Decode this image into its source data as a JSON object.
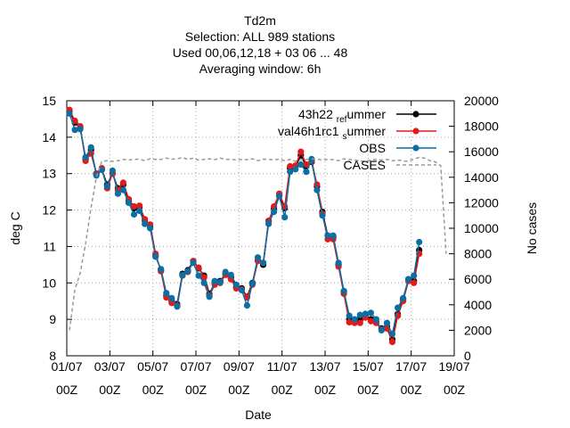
{
  "chart_data": {
    "type": "line",
    "title_lines": [
      "Td2m",
      "Selection: ALL    989 stations",
      "Used  00,06,12,18  + 03 06 ... 48",
      "Averaging window:  6h"
    ],
    "xlabel": "Date",
    "ylabel": "deg C",
    "y2label": "No cases",
    "xlim_days": [
      0,
      18
    ],
    "ylim": [
      8,
      15
    ],
    "y2lim": [
      0,
      20000
    ],
    "x_ticks": [
      {
        "day": 0,
        "line1": "01/07",
        "line2": "00Z"
      },
      {
        "day": 2,
        "line1": "03/07",
        "line2": "00Z"
      },
      {
        "day": 4,
        "line1": "05/07",
        "line2": "00Z"
      },
      {
        "day": 6,
        "line1": "07/07",
        "line2": "00Z"
      },
      {
        "day": 8,
        "line1": "09/07",
        "line2": "00Z"
      },
      {
        "day": 10,
        "line1": "11/07",
        "line2": "00Z"
      },
      {
        "day": 12,
        "line1": "13/07",
        "line2": "00Z"
      },
      {
        "day": 14,
        "line1": "15/07",
        "line2": "00Z"
      },
      {
        "day": 16,
        "line1": "17/07",
        "line2": "00Z"
      },
      {
        "day": 18,
        "line1": "19/07",
        "line2": "00Z"
      }
    ],
    "y_ticks": [
      8,
      9,
      10,
      11,
      12,
      13,
      14,
      15
    ],
    "y2_ticks": [
      0,
      2000,
      4000,
      6000,
      8000,
      10000,
      12000,
      14000,
      16000,
      18000,
      20000
    ],
    "grid": true,
    "legend_position": "top-right",
    "x_days": [
      0.125,
      0.375,
      0.625,
      0.875,
      1.125,
      1.375,
      1.625,
      1.875,
      2.125,
      2.375,
      2.625,
      2.875,
      3.125,
      3.375,
      3.625,
      3.875,
      4.125,
      4.375,
      4.625,
      4.875,
      5.125,
      5.375,
      5.625,
      5.875,
      6.125,
      6.375,
      6.625,
      6.875,
      7.125,
      7.375,
      7.625,
      7.875,
      8.125,
      8.375,
      8.625,
      8.875,
      9.125,
      9.375,
      9.625,
      9.875,
      10.125,
      10.375,
      10.625,
      10.875,
      11.125,
      11.375,
      11.625,
      11.875,
      12.125,
      12.375,
      12.625,
      12.875,
      13.125,
      13.375,
      13.625,
      13.875,
      14.125,
      14.375,
      14.625,
      14.875,
      15.125,
      15.375,
      15.625,
      15.875,
      16.125,
      16.375,
      16.625,
      16.875,
      17.125,
      17.375,
      17.625
    ],
    "series": [
      {
        "name": "43h22 ref summer",
        "legend_main": "43h22",
        "legend_sub1": "ref",
        "legend_sub2": "ummer",
        "color": "#000000",
        "values": [
          14.72,
          14.4,
          14.25,
          13.4,
          13.65,
          13.0,
          13.12,
          12.7,
          13.0,
          12.6,
          12.7,
          12.25,
          12.05,
          12.08,
          11.72,
          11.55,
          10.75,
          10.35,
          9.65,
          9.5,
          9.42,
          10.25,
          10.35,
          10.6,
          10.4,
          10.2,
          9.7,
          10.0,
          10.05,
          10.25,
          10.15,
          9.88,
          9.85,
          9.62,
          10.0,
          10.62,
          10.5,
          11.7,
          12.05,
          12.4,
          12.05,
          13.15,
          13.2,
          13.5,
          13.2,
          13.32,
          12.65,
          11.95,
          11.3,
          11.25,
          10.5,
          9.75,
          9.0,
          8.95,
          8.98,
          9.1,
          9.0,
          8.92,
          8.75,
          8.8,
          8.45,
          9.15,
          9.55,
          10.1,
          10.05,
          10.9
        ]
      },
      {
        "name": "val46h1rc1 summer",
        "legend_main": "val46h1rc1",
        "legend_sub1": "s",
        "legend_sub2": "ummer",
        "color": "#e31a1c",
        "values": [
          14.75,
          14.45,
          14.3,
          13.35,
          13.55,
          13.0,
          13.15,
          12.6,
          13.0,
          12.55,
          12.75,
          12.3,
          12.1,
          12.12,
          11.75,
          11.6,
          10.8,
          10.32,
          9.6,
          9.45,
          9.38,
          10.2,
          10.3,
          10.6,
          10.42,
          10.15,
          9.65,
          9.95,
          10.0,
          10.22,
          10.1,
          9.85,
          9.82,
          9.6,
          9.95,
          10.6,
          10.55,
          11.68,
          12.1,
          12.45,
          12.1,
          13.2,
          13.22,
          13.6,
          13.25,
          13.35,
          12.7,
          11.9,
          11.2,
          11.2,
          10.45,
          9.7,
          8.92,
          8.9,
          8.9,
          9.05,
          8.95,
          8.9,
          8.72,
          8.75,
          8.38,
          9.1,
          9.5,
          10.05,
          10.0,
          10.8
        ]
      },
      {
        "name": "OBS",
        "legend_main": "OBS",
        "color": "#0b6fa4",
        "values": [
          14.65,
          14.2,
          14.22,
          13.45,
          13.72,
          12.95,
          13.1,
          12.65,
          13.08,
          12.45,
          12.55,
          12.2,
          11.88,
          11.98,
          11.62,
          11.5,
          10.72,
          10.38,
          9.72,
          9.58,
          9.35,
          10.22,
          10.32,
          10.55,
          10.2,
          10.0,
          9.62,
          10.05,
          10.02,
          10.3,
          10.22,
          9.95,
          9.8,
          9.38,
          9.98,
          10.7,
          10.55,
          11.62,
          11.95,
          12.38,
          11.8,
          13.05,
          13.12,
          13.25,
          13.05,
          13.4,
          12.55,
          11.85,
          11.3,
          11.3,
          10.55,
          9.78,
          9.1,
          9.0,
          9.12,
          9.15,
          9.18,
          9.0,
          8.7,
          8.9,
          8.6,
          9.32,
          9.58,
          10.1,
          10.2,
          11.12
        ]
      },
      {
        "name": "CASES",
        "legend_main": "CASES",
        "color": "#999999",
        "axis": "y2",
        "values": [
          2000,
          5200,
          6500,
          8800,
          11600,
          14000,
          15250,
          15300,
          15250,
          15300,
          15400,
          15350,
          15400,
          15420,
          15300,
          15450,
          15400,
          15400,
          15500,
          15420,
          15450,
          15550,
          15400,
          15500,
          15350,
          15400,
          15450,
          15380,
          15500,
          15400,
          15420,
          15350,
          15400,
          15380,
          15450,
          15300,
          15420,
          15400,
          15380,
          15420,
          15300,
          15400,
          15250,
          15380,
          15400,
          15450,
          15420,
          15350,
          15400,
          15380,
          15300,
          15450,
          15400,
          15350,
          15280,
          15250,
          15350,
          15400,
          15350,
          15400,
          15300,
          15350,
          15280,
          15250,
          15450,
          15550,
          15500,
          15300,
          15200,
          14900,
          8000
        ]
      }
    ]
  }
}
